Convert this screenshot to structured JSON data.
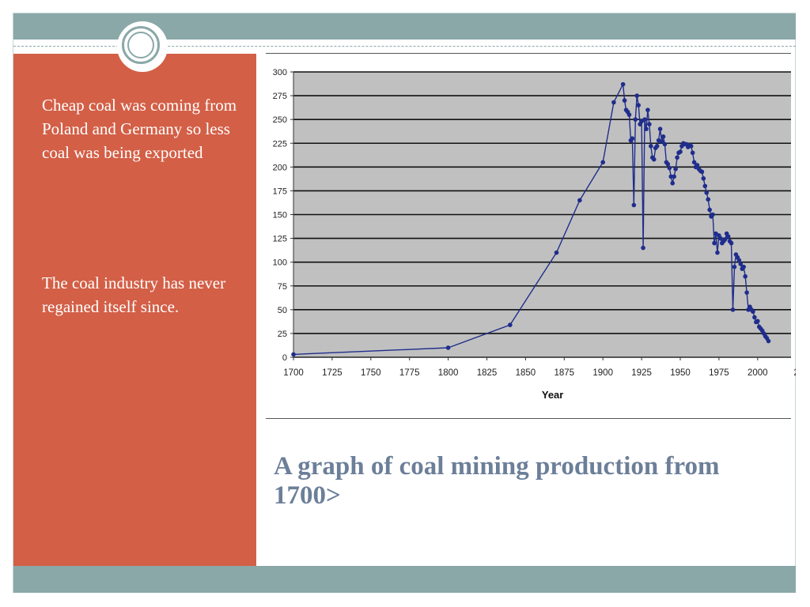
{
  "slide": {
    "bullets": [
      "Cheap coal was coming from Poland and Germany so less coal was being exported",
      "The coal industry has never regained itself since."
    ],
    "caption": "A graph of coal mining production from 1700>"
  },
  "colors": {
    "accent_band": "#8aa8a8",
    "left_panel": "#d35f46",
    "caption": "#6c7f99",
    "plot_bg": "#c0c0c0",
    "series": "#1f2d8c"
  },
  "chart_data": {
    "type": "line",
    "title": "",
    "xlabel": "Year",
    "ylabel": "",
    "xlim": [
      1700,
      2025
    ],
    "ylim": [
      0,
      300
    ],
    "x_ticks": [
      "1700",
      "1725",
      "1750",
      "1775",
      "1800",
      "1825",
      "1850",
      "1875",
      "1900",
      "1925",
      "1950",
      "1975",
      "2000",
      "2"
    ],
    "y_ticks": [
      "0",
      "25",
      "50",
      "75",
      "100",
      "125",
      "150",
      "175",
      "200",
      "225",
      "250",
      "275",
      "300"
    ],
    "grid": true,
    "legend": "none",
    "series": [
      {
        "points": [
          [
            1700,
            3
          ],
          [
            1800,
            10
          ],
          [
            1840,
            34
          ],
          [
            1870,
            110
          ],
          [
            1885,
            165
          ],
          [
            1900,
            205
          ],
          [
            1907,
            268
          ],
          [
            1913,
            287
          ],
          [
            1914,
            270
          ],
          [
            1915,
            260
          ],
          [
            1916,
            258
          ],
          [
            1917,
            255
          ],
          [
            1918,
            228
          ],
          [
            1919,
            230
          ],
          [
            1920,
            160
          ],
          [
            1921,
            250
          ],
          [
            1922,
            275
          ],
          [
            1923,
            265
          ],
          [
            1924,
            245
          ],
          [
            1925,
            248
          ],
          [
            1926,
            115
          ],
          [
            1927,
            250
          ],
          [
            1928,
            240
          ],
          [
            1929,
            260
          ],
          [
            1930,
            245
          ],
          [
            1931,
            222
          ],
          [
            1932,
            210
          ],
          [
            1933,
            208
          ],
          [
            1934,
            220
          ],
          [
            1935,
            222
          ],
          [
            1936,
            228
          ],
          [
            1937,
            240
          ],
          [
            1938,
            227
          ],
          [
            1939,
            232
          ],
          [
            1940,
            224
          ],
          [
            1941,
            205
          ],
          [
            1942,
            203
          ],
          [
            1943,
            199
          ],
          [
            1944,
            190
          ],
          [
            1945,
            183
          ],
          [
            1946,
            190
          ],
          [
            1947,
            198
          ],
          [
            1948,
            210
          ],
          [
            1949,
            215
          ],
          [
            1950,
            216
          ],
          [
            1951,
            222
          ],
          [
            1952,
            225
          ],
          [
            1953,
            224
          ],
          [
            1954,
            224
          ],
          [
            1955,
            221
          ],
          [
            1956,
            223
          ],
          [
            1957,
            222
          ],
          [
            1958,
            215
          ],
          [
            1959,
            205
          ],
          [
            1960,
            200
          ],
          [
            1961,
            202
          ],
          [
            1962,
            198
          ],
          [
            1963,
            196
          ],
          [
            1964,
            195
          ],
          [
            1965,
            188
          ],
          [
            1966,
            180
          ],
          [
            1967,
            173
          ],
          [
            1968,
            166
          ],
          [
            1969,
            155
          ],
          [
            1970,
            148
          ],
          [
            1971,
            150
          ],
          [
            1972,
            120
          ],
          [
            1973,
            130
          ],
          [
            1974,
            110
          ],
          [
            1975,
            128
          ],
          [
            1976,
            125
          ],
          [
            1977,
            120
          ],
          [
            1978,
            122
          ],
          [
            1979,
            124
          ],
          [
            1980,
            130
          ],
          [
            1981,
            127
          ],
          [
            1982,
            122
          ],
          [
            1983,
            120
          ],
          [
            1984,
            50
          ],
          [
            1985,
            95
          ],
          [
            1986,
            108
          ],
          [
            1987,
            105
          ],
          [
            1988,
            102
          ],
          [
            1989,
            98
          ],
          [
            1990,
            93
          ],
          [
            1991,
            95
          ],
          [
            1992,
            85
          ],
          [
            1993,
            68
          ],
          [
            1994,
            50
          ],
          [
            1995,
            53
          ],
          [
            1996,
            50
          ],
          [
            1997,
            48
          ],
          [
            1998,
            42
          ],
          [
            1999,
            37
          ],
          [
            2000,
            38
          ],
          [
            2001,
            32
          ],
          [
            2002,
            30
          ],
          [
            2003,
            28
          ],
          [
            2004,
            25
          ],
          [
            2005,
            22
          ],
          [
            2006,
            20
          ],
          [
            2007,
            17
          ]
        ]
      }
    ]
  }
}
